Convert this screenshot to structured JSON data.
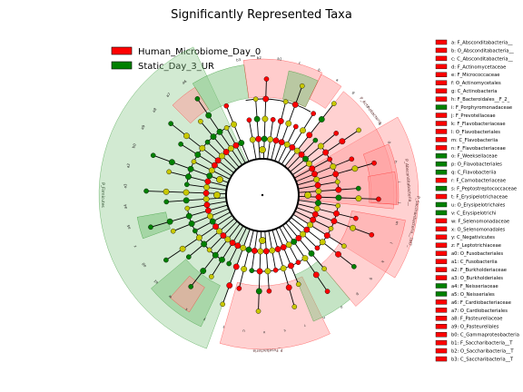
{
  "title": "Significantly Represented Taxa",
  "colors": {
    "human": "#ff0000",
    "static": "#008000",
    "neutral": "#c8c800"
  },
  "legend": [
    {
      "label": "Human_Microbiome_Day_0",
      "color": "#ff0000"
    },
    {
      "label": "Static_Day_3_UR",
      "color": "#008000"
    }
  ],
  "key": [
    {
      "text": "a: F_Absconditabacteria__",
      "color": "#ff0000"
    },
    {
      "text": "b: O_Absconditabacteria__",
      "color": "#ff0000"
    },
    {
      "text": "c: C_Absconditabacteria__",
      "color": "#ff0000"
    },
    {
      "text": "d: F_Actinomycetaceae",
      "color": "#ff0000"
    },
    {
      "text": "e: F_Micrococcaceae",
      "color": "#ff0000"
    },
    {
      "text": "f: O_Actinomycetales",
      "color": "#ff0000"
    },
    {
      "text": "g: C_Actinobacteria",
      "color": "#ff0000"
    },
    {
      "text": "h: F_Bacteroidales__F_2_",
      "color": "#ff0000"
    },
    {
      "text": "i: F_Porphyromonadaceae",
      "color": "#008000"
    },
    {
      "text": "j: F_Prevotellaceae",
      "color": "#ff0000"
    },
    {
      "text": "k: F_Flavobacteriaceae",
      "color": "#ff0000"
    },
    {
      "text": "l: O_Flavobacteriales",
      "color": "#ff0000"
    },
    {
      "text": "m: C_Flavobacteriia",
      "color": "#ff0000"
    },
    {
      "text": "n: F_Flavobacteriaceae",
      "color": "#ff0000"
    },
    {
      "text": "o: F_Weeksellaceae",
      "color": "#008000"
    },
    {
      "text": "p: O_Flavobacteriales",
      "color": "#008000"
    },
    {
      "text": "q: C_Flavobacteriia",
      "color": "#008000"
    },
    {
      "text": "r: F_Carnobacteriaceae",
      "color": "#ff0000"
    },
    {
      "text": "s: F_Peptostreptococcaceae",
      "color": "#008000"
    },
    {
      "text": "t: F_Erysipelotrichaceae",
      "color": "#ff0000"
    },
    {
      "text": "u: O_Erysipelotrichales",
      "color": "#008000"
    },
    {
      "text": "v: C_Erysipelotrichi",
      "color": "#008000"
    },
    {
      "text": "w: F_Selenomonadaceae",
      "color": "#ff0000"
    },
    {
      "text": "x: O_Selenomonadales",
      "color": "#ff0000"
    },
    {
      "text": "y: C_Negativicutes",
      "color": "#ff0000"
    },
    {
      "text": "z: F_Leptotrichiaceae",
      "color": "#ff0000"
    },
    {
      "text": "a0: O_Fusobacteriales",
      "color": "#ff0000"
    },
    {
      "text": "a1: C_Fusobacteriia",
      "color": "#ff0000"
    },
    {
      "text": "a2: F_Burkholderiaceae",
      "color": "#ff0000"
    },
    {
      "text": "a3: O_Burkholderiales",
      "color": "#ff0000"
    },
    {
      "text": "a4: F_Neisseriaceae",
      "color": "#008000"
    },
    {
      "text": "a5: O_Neisseriales",
      "color": "#008000"
    },
    {
      "text": "a6: F_Cardiobacteriaceae",
      "color": "#ff0000"
    },
    {
      "text": "a7: O_Cardiobacteriales",
      "color": "#ff0000"
    },
    {
      "text": "a8: F_Pasteurellaceae",
      "color": "#ff0000"
    },
    {
      "text": "a9: O_Pasteurellales",
      "color": "#ff0000"
    },
    {
      "text": "b0: C_Gammaproteobacteria",
      "color": "#ff0000"
    },
    {
      "text": "b1: F_Saccharibacteria__T",
      "color": "#ff0000"
    },
    {
      "text": "b2: O_Saccharibacteria__T",
      "color": "#ff0000"
    },
    {
      "text": "b3: C_Saccharibacteria__T",
      "color": "#ff0000"
    }
  ],
  "phylum_labels": [
    {
      "text": "P_Firmicutes",
      "color": "#008000"
    },
    {
      "text": "P_Fusobacteria",
      "color": "#ff0000"
    },
    {
      "text": "P_Actinobacteria",
      "color": "#ff0000"
    },
    {
      "text": "P_Absconditabacteria__",
      "color": "#ff0000"
    },
    {
      "text": "P_Saccharibacteria__TM7_",
      "color": "#ff0000"
    }
  ],
  "clades": [
    {
      "id": "b3",
      "group": "human"
    },
    {
      "id": "b2",
      "group": "human"
    },
    {
      "id": "b1",
      "group": "human"
    },
    {
      "id": "c",
      "group": "human"
    },
    {
      "id": "b",
      "group": "human"
    },
    {
      "id": "a",
      "group": "human"
    },
    {
      "id": "g",
      "group": "human"
    },
    {
      "id": "f",
      "group": "human"
    },
    {
      "id": "e",
      "group": "human"
    },
    {
      "id": "d",
      "group": "human"
    },
    {
      "id": "h",
      "group": "human"
    },
    {
      "id": "i",
      "group": "static"
    },
    {
      "id": "j",
      "group": "human"
    },
    {
      "id": "m",
      "group": "human"
    },
    {
      "id": "l",
      "group": "human"
    },
    {
      "id": "k",
      "group": "human"
    },
    {
      "id": "q",
      "group": "static"
    },
    {
      "id": "p",
      "group": "static"
    },
    {
      "id": "o",
      "group": "static"
    },
    {
      "id": "n",
      "group": "human"
    },
    {
      "id": "r",
      "group": "human"
    },
    {
      "id": "s",
      "group": "static"
    },
    {
      "id": "v",
      "group": "static"
    },
    {
      "id": "u",
      "group": "static"
    },
    {
      "id": "t",
      "group": "human"
    },
    {
      "id": "y",
      "group": "human"
    },
    {
      "id": "x",
      "group": "human"
    },
    {
      "id": "w",
      "group": "human"
    },
    {
      "id": "a1",
      "group": "human"
    },
    {
      "id": "a0",
      "group": "human"
    },
    {
      "id": "z",
      "group": "human"
    },
    {
      "id": "a5",
      "group": "static"
    },
    {
      "id": "a4",
      "group": "static"
    },
    {
      "id": "a3",
      "group": "human"
    },
    {
      "id": "a2",
      "group": "human"
    },
    {
      "id": "b0",
      "group": "human"
    },
    {
      "id": "a9",
      "group": "human"
    },
    {
      "id": "a8",
      "group": "human"
    },
    {
      "id": "a7",
      "group": "human"
    },
    {
      "id": "a6",
      "group": "human"
    }
  ]
}
